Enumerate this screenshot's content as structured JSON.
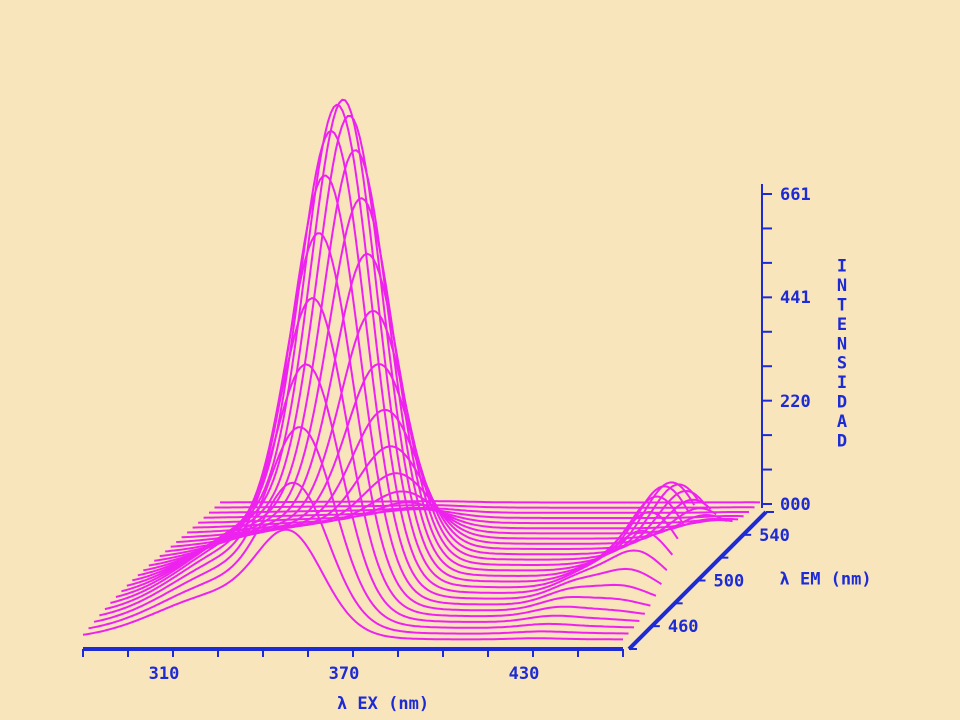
{
  "chart_data": {
    "type": "surface-3d",
    "colors": {
      "background": "#f8e5bb",
      "axis": "#1d2bd6",
      "series": "#ee22ee"
    },
    "x_axis": {
      "label": "λ EX (nm)",
      "ticks": [
        "310",
        "370",
        "430"
      ],
      "range": [
        283,
        463
      ]
    },
    "depth_axis": {
      "label": "λ EM (nm)",
      "ticks": [
        "460",
        "500",
        "540"
      ],
      "range": [
        440,
        560
      ]
    },
    "z_axis": {
      "label": "INTENSIDAD",
      "ticks": [
        "000",
        "220",
        "441",
        "661"
      ],
      "range": [
        0,
        661
      ]
    },
    "peaks": [
      {
        "ex": 350,
        "em": 478,
        "z": 555
      },
      {
        "ex": 358,
        "em": 485,
        "z": 500
      },
      {
        "ex": 433,
        "em": 475,
        "z": 25
      },
      {
        "ex": 441,
        "em": 485,
        "z": 22
      },
      {
        "ex": 452,
        "em": 495,
        "z": 115
      },
      {
        "ex": 460,
        "em": 505,
        "z": 95
      }
    ]
  }
}
